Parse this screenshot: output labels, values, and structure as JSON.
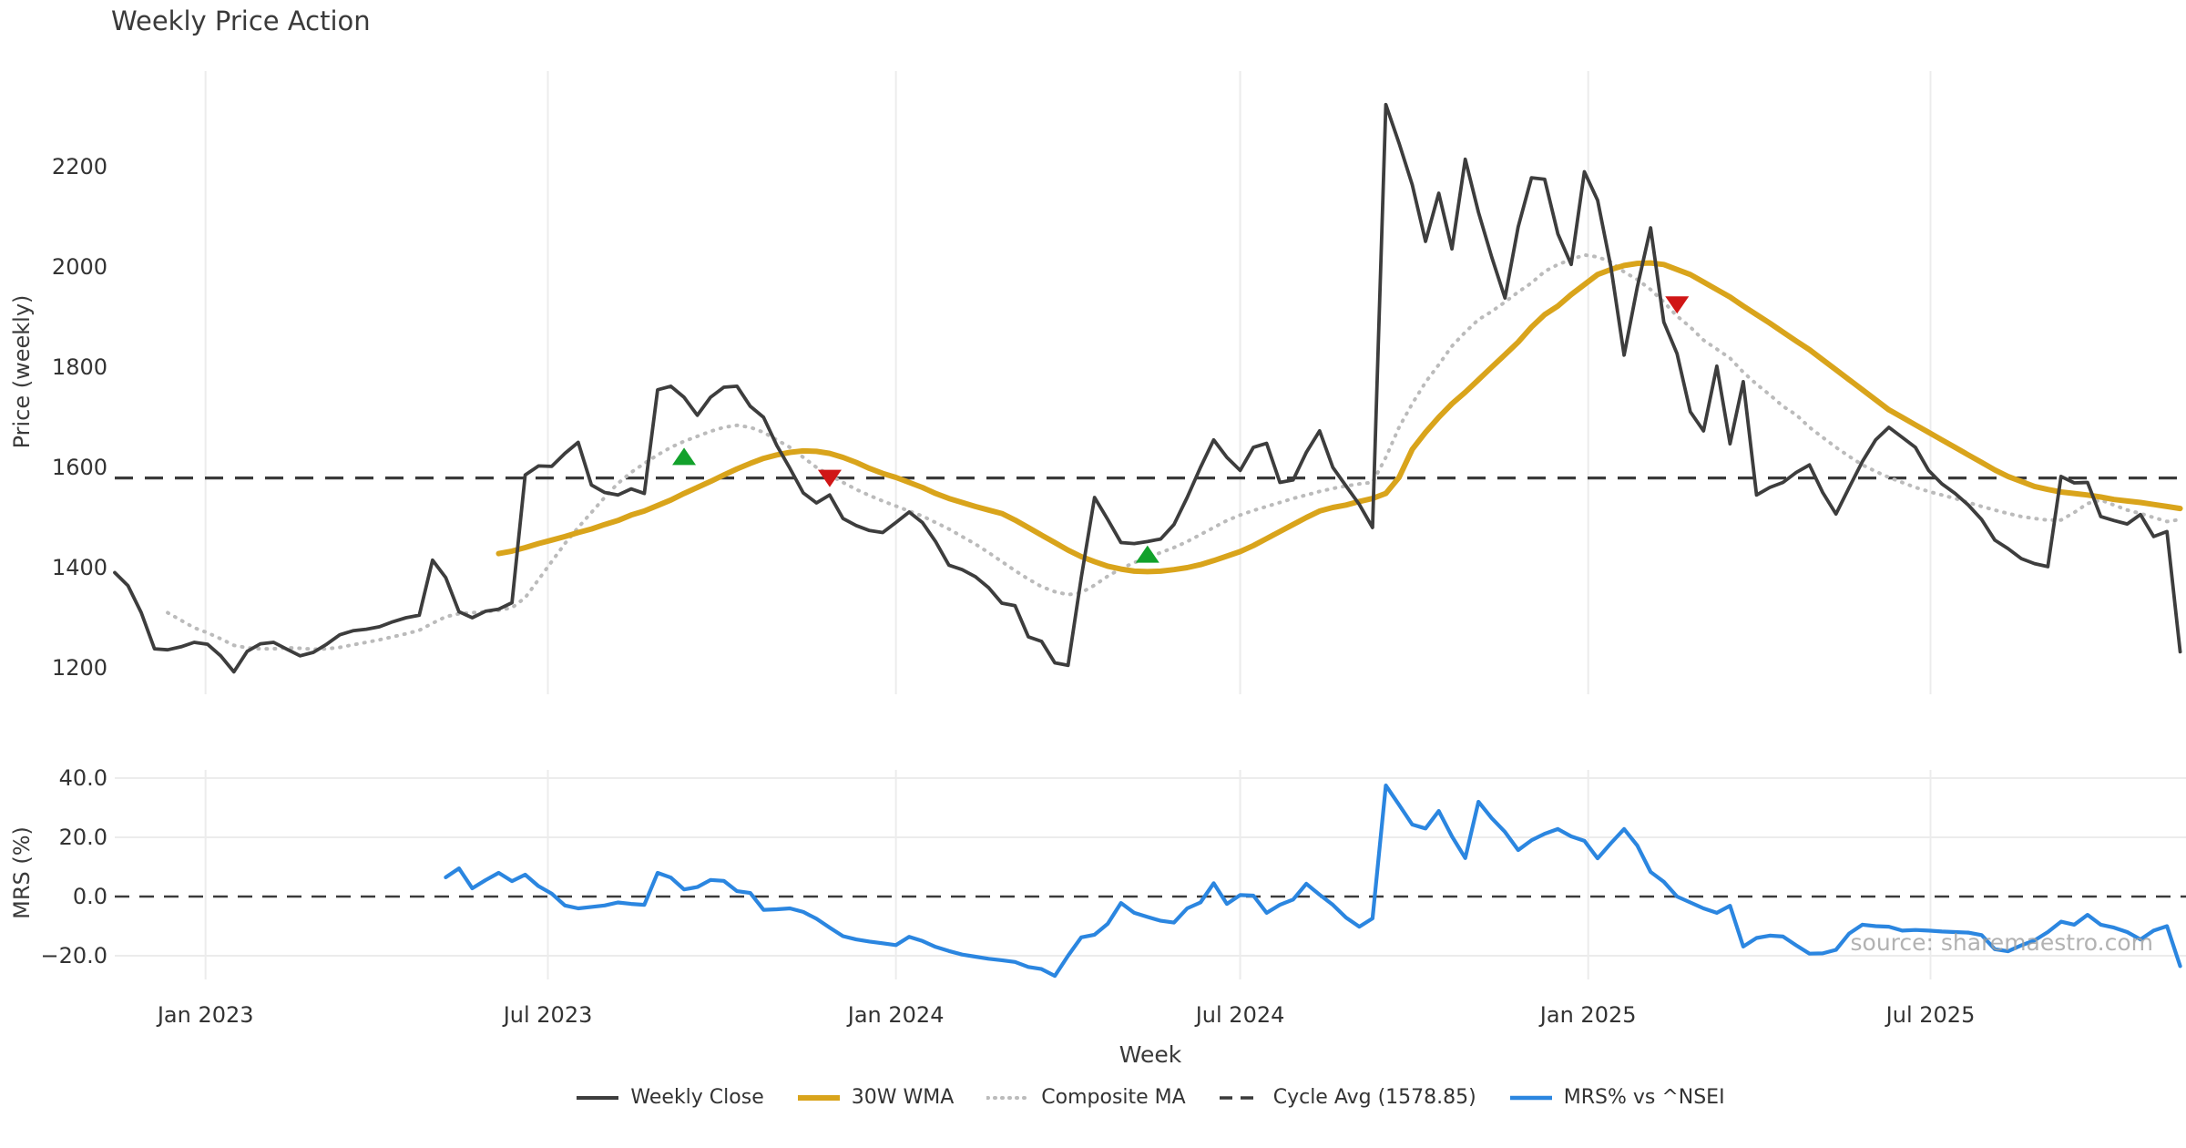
{
  "title": "Weekly Price Action",
  "watermark": "source: sharemaestro.com",
  "colors": {
    "weekly_close": "#3d3d3d",
    "wma_30w": "#d9a41b",
    "composite_ma": "#bbbbbb",
    "cycle_avg": "#3a3a3a",
    "mrs": "#2b86e0",
    "buy_marker": "#12a12b",
    "sell_marker": "#d01616",
    "grid": "#ececec",
    "text": "#333333"
  },
  "price_axis": {
    "label": "Price (weekly)",
    "ticks": [
      1200,
      1400,
      1600,
      1800,
      2000,
      2200
    ]
  },
  "mrs_axis": {
    "label": "MRS (%)",
    "tick_labels": [
      "−20.0",
      "0.0",
      "20.0",
      "40.0"
    ],
    "tick_values": [
      -20,
      0,
      20,
      40
    ]
  },
  "x_axis": {
    "label": "Week",
    "ticks": [
      {
        "label": "Jan 2023",
        "date": "2023-01-01"
      },
      {
        "label": "Jul 2023",
        "date": "2023-07-01"
      },
      {
        "label": "Jan 2024",
        "date": "2024-01-01"
      },
      {
        "label": "Jul 2024",
        "date": "2024-07-01"
      },
      {
        "label": "Jan 2025",
        "date": "2025-01-01"
      },
      {
        "label": "Jul 2025",
        "date": "2025-07-01"
      }
    ]
  },
  "legend": [
    {
      "label": "Weekly Close",
      "style": "solid",
      "color_key": "weekly_close",
      "width": 4
    },
    {
      "label": "30W WMA",
      "style": "solid",
      "color_key": "wma_30w",
      "width": 6
    },
    {
      "label": "Composite MA",
      "style": "dotted",
      "color_key": "composite_ma",
      "width": 4
    },
    {
      "label": "Cycle Avg (1578.85)",
      "style": "dashed",
      "color_key": "cycle_avg",
      "width": 3.5
    },
    {
      "label": "MRS% vs ^NSEI",
      "style": "solid",
      "color_key": "mrs",
      "width": 4.5
    }
  ],
  "chart_data": {
    "type": "line",
    "title": "Weekly Price Action",
    "start_date": "2022-11-14",
    "interval_days": 7,
    "price_ylim": [
      1150,
      2400
    ],
    "mrs_ylim": [
      -28,
      43
    ],
    "cycle_avg_value": 1578.85,
    "series": [
      {
        "name": "Weekly Close",
        "start_week": 0,
        "values": [
          1390,
          1364,
          1310,
          1238,
          1236,
          1242,
          1251,
          1247,
          1224,
          1192,
          1233,
          1248,
          1251,
          1237,
          1224,
          1231,
          1247,
          1266,
          1274,
          1277,
          1282,
          1292,
          1300,
          1305,
          1415,
          1380,
          1312,
          1300,
          1313,
          1317,
          1330,
          1585,
          1603,
          1602,
          1628,
          1650,
          1565,
          1550,
          1545,
          1557,
          1548,
          1755,
          1762,
          1740,
          1704,
          1740,
          1760,
          1762,
          1722,
          1700,
          1644,
          1598,
          1549,
          1529,
          1545,
          1498,
          1484,
          1474,
          1470,
          1490,
          1511,
          1490,
          1452,
          1405,
          1396,
          1382,
          1360,
          1329,
          1324,
          1262,
          1253,
          1210,
          1205,
          1380,
          1540,
          1496,
          1450,
          1448,
          1452,
          1457,
          1486,
          1540,
          1600,
          1655,
          1620,
          1594,
          1640,
          1648,
          1570,
          1575,
          1630,
          1673,
          1600,
          1563,
          1526,
          1480,
          2324,
          2247,
          2164,
          2051,
          2147,
          2036,
          2215,
          2109,
          2020,
          1938,
          2080,
          2178,
          2175,
          2066,
          2005,
          2190,
          2133,
          2000,
          1824,
          1960,
          2078,
          1890,
          1827,
          1711,
          1673,
          1802,
          1647,
          1771,
          1545,
          1560,
          1570,
          1590,
          1605,
          1550,
          1507,
          1560,
          1612,
          1655,
          1680,
          1660,
          1640,
          1594,
          1567,
          1548,
          1525,
          1496,
          1455,
          1438,
          1418,
          1408,
          1402,
          1582,
          1569,
          1570,
          1502,
          1494,
          1487,
          1506,
          1462,
          1472,
          1232
        ]
      },
      {
        "name": "30W WMA",
        "start_week": 29,
        "values": [
          1428,
          1433,
          1440,
          1448,
          1455,
          1462,
          1470,
          1477,
          1486,
          1494,
          1505,
          1513,
          1524,
          1535,
          1548,
          1560,
          1572,
          1585,
          1597,
          1608,
          1618,
          1625,
          1630,
          1633,
          1632,
          1628,
          1620,
          1610,
          1598,
          1588,
          1580,
          1570,
          1560,
          1548,
          1538,
          1530,
          1522,
          1515,
          1508,
          1495,
          1480,
          1465,
          1450,
          1435,
          1422,
          1412,
          1403,
          1397,
          1393,
          1392,
          1393,
          1396,
          1400,
          1406,
          1414,
          1423,
          1432,
          1444,
          1458,
          1472,
          1486,
          1500,
          1513,
          1520,
          1525,
          1532,
          1538,
          1548,
          1580,
          1636,
          1670,
          1700,
          1727,
          1750,
          1775,
          1800,
          1825,
          1850,
          1880,
          1905,
          1922,
          1945,
          1965,
          1985,
          1995,
          2003,
          2007,
          2008,
          2005,
          1995,
          1985,
          1970,
          1955,
          1940,
          1922,
          1905,
          1888,
          1870,
          1852,
          1835,
          1815,
          1795,
          1775,
          1755,
          1735,
          1715,
          1700,
          1685,
          1670,
          1655,
          1640,
          1625,
          1610,
          1595,
          1582,
          1572,
          1562,
          1556,
          1551,
          1548,
          1545,
          1541,
          1536,
          1533,
          1530,
          1526,
          1522,
          1518
        ]
      },
      {
        "name": "Composite MA",
        "start_week": 4,
        "values": [
          1310,
          1295,
          1280,
          1270,
          1258,
          1245,
          1240,
          1238,
          1238,
          1240,
          1239,
          1237,
          1238,
          1241,
          1246,
          1251,
          1256,
          1262,
          1268,
          1275,
          1289,
          1302,
          1308,
          1310,
          1312,
          1315,
          1320,
          1340,
          1376,
          1412,
          1448,
          1480,
          1510,
          1540,
          1568,
          1590,
          1608,
          1625,
          1640,
          1652,
          1662,
          1672,
          1680,
          1684,
          1680,
          1670,
          1655,
          1640,
          1620,
          1600,
          1585,
          1570,
          1556,
          1544,
          1533,
          1523,
          1513,
          1503,
          1490,
          1477,
          1462,
          1447,
          1430,
          1412,
          1394,
          1377,
          1362,
          1352,
          1346,
          1350,
          1365,
          1383,
          1398,
          1410,
          1420,
          1430,
          1440,
          1452,
          1466,
          1480,
          1494,
          1505,
          1514,
          1522,
          1530,
          1538,
          1545,
          1552,
          1558,
          1563,
          1567,
          1570,
          1620,
          1680,
          1727,
          1770,
          1805,
          1842,
          1870,
          1895,
          1911,
          1930,
          1950,
          1968,
          1991,
          2005,
          2015,
          2024,
          2020,
          2010,
          1990,
          1975,
          1955,
          1930,
          1902,
          1880,
          1854,
          1836,
          1818,
          1790,
          1766,
          1745,
          1722,
          1705,
          1680,
          1660,
          1640,
          1622,
          1605,
          1592,
          1580,
          1570,
          1560,
          1552,
          1545,
          1538,
          1530,
          1522,
          1515,
          1508,
          1502,
          1498,
          1495,
          1495,
          1510,
          1528,
          1535,
          1525,
          1515,
          1508,
          1500,
          1492,
          1496
        ]
      },
      {
        "name": "MRS% vs ^NSEI",
        "start_week": 25,
        "values": [
          6.5,
          9.5,
          2.8,
          5.5,
          8.0,
          5.2,
          7.4,
          3.5,
          1.0,
          -3.0,
          -4.0,
          -3.5,
          -3.0,
          -2.0,
          -2.5,
          -2.8,
          8.0,
          6.4,
          2.4,
          3.2,
          5.6,
          5.3,
          1.8,
          1.2,
          -4.5,
          -4.3,
          -4.0,
          -5.2,
          -7.5,
          -10.5,
          -13.4,
          -14.5,
          -15.2,
          -15.8,
          -16.4,
          -13.6,
          -15.0,
          -17.0,
          -18.4,
          -19.6,
          -20.3,
          -21.0,
          -21.5,
          -22.1,
          -23.8,
          -24.5,
          -26.8,
          -20.0,
          -13.8,
          -12.9,
          -9.2,
          -2.2,
          -5.5,
          -6.9,
          -8.2,
          -8.8,
          -4.0,
          -2.0,
          4.5,
          -2.5,
          0.5,
          0.3,
          -5.5,
          -2.8,
          -1.0,
          4.3,
          0.6,
          -2.8,
          -7.1,
          -10.2,
          -7.4,
          37.5,
          31.0,
          24.3,
          23.0,
          28.9,
          20.3,
          13.0,
          32.0,
          26.5,
          21.8,
          15.7,
          19.0,
          21.2,
          22.8,
          20.3,
          18.8,
          12.9,
          18.0,
          22.8,
          17.2,
          8.3,
          5.0,
          0.0,
          -2.0,
          -4.0,
          -5.5,
          -3.1,
          -16.9,
          -14.0,
          -13.2,
          -13.5,
          -16.5,
          -19.3,
          -19.2,
          -18.0,
          -12.5,
          -9.5,
          -10.0,
          -10.2,
          -11.5,
          -11.3,
          -11.5,
          -11.8,
          -12.0,
          -12.2,
          -13.0,
          -17.8,
          -18.5,
          -16.5,
          -14.8,
          -12.0,
          -8.5,
          -9.5,
          -6.2,
          -9.5,
          -10.5,
          -12.0,
          -14.5,
          -11.5,
          -10.0,
          -23.5
        ]
      }
    ],
    "markers": [
      {
        "type": "buy",
        "week": 43,
        "date": "2023-09-11",
        "price": 1622
      },
      {
        "type": "sell",
        "week": 54,
        "date": "2023-11-27",
        "price": 1578
      },
      {
        "type": "buy",
        "week": 78,
        "date": "2024-05-13",
        "price": 1427
      },
      {
        "type": "sell",
        "week": 118,
        "date": "2025-02-17",
        "price": 1924
      }
    ]
  }
}
